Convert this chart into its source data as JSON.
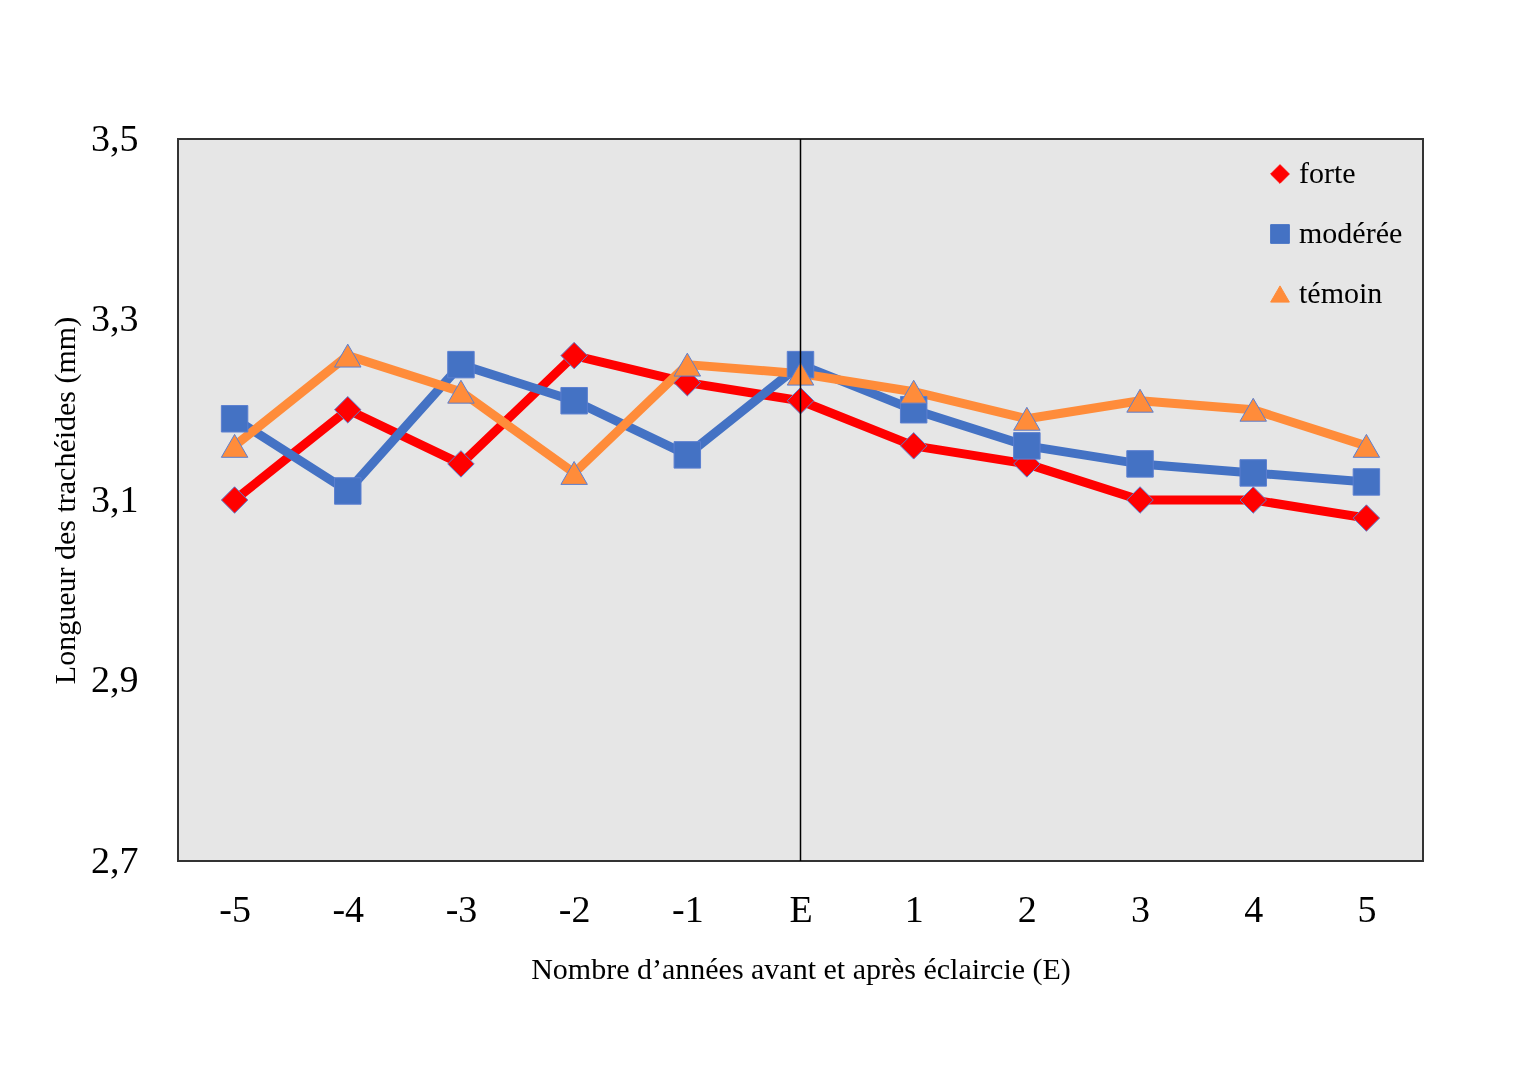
{
  "chart_data": {
    "type": "line",
    "xlabel": "Nombre d’années avant et après éclaircie (E)",
    "ylabel": "Longueur  des trachéides (mm)",
    "categories": [
      "-5",
      "-4",
      "-3",
      "-2",
      "-1",
      "E",
      "1",
      "2",
      "3",
      "4",
      "5"
    ],
    "series": [
      {
        "name": "forte",
        "color": "#ff0000",
        "marker": "diamond",
        "values": [
          3.1,
          3.2,
          3.14,
          3.26,
          3.23,
          3.21,
          3.16,
          3.14,
          3.1,
          3.1,
          3.08
        ]
      },
      {
        "name": "modérée",
        "color": "#4472c4",
        "marker": "square",
        "values": [
          3.19,
          3.11,
          3.25,
          3.21,
          3.15,
          3.25,
          3.2,
          3.16,
          3.14,
          3.13,
          3.12
        ]
      },
      {
        "name": "témoin",
        "color": "#ff8c3a",
        "marker": "triangle",
        "values": [
          3.16,
          3.26,
          3.22,
          3.13,
          3.25,
          3.24,
          3.22,
          3.19,
          3.21,
          3.2,
          3.16
        ]
      }
    ],
    "ylim": [
      2.7,
      3.5
    ],
    "yticks": [
      {
        "value": 2.7,
        "label": "2,7"
      },
      {
        "value": 2.9,
        "label": "2,9"
      },
      {
        "value": 3.1,
        "label": "3,1"
      },
      {
        "value": 3.3,
        "label": "3,3"
      },
      {
        "value": 3.5,
        "label": "3,5"
      }
    ],
    "ref_lines": [
      {
        "axis": "x",
        "value": "E",
        "color": "#000000"
      }
    ],
    "grid": false,
    "legend": "top right",
    "line_style": "solid"
  }
}
